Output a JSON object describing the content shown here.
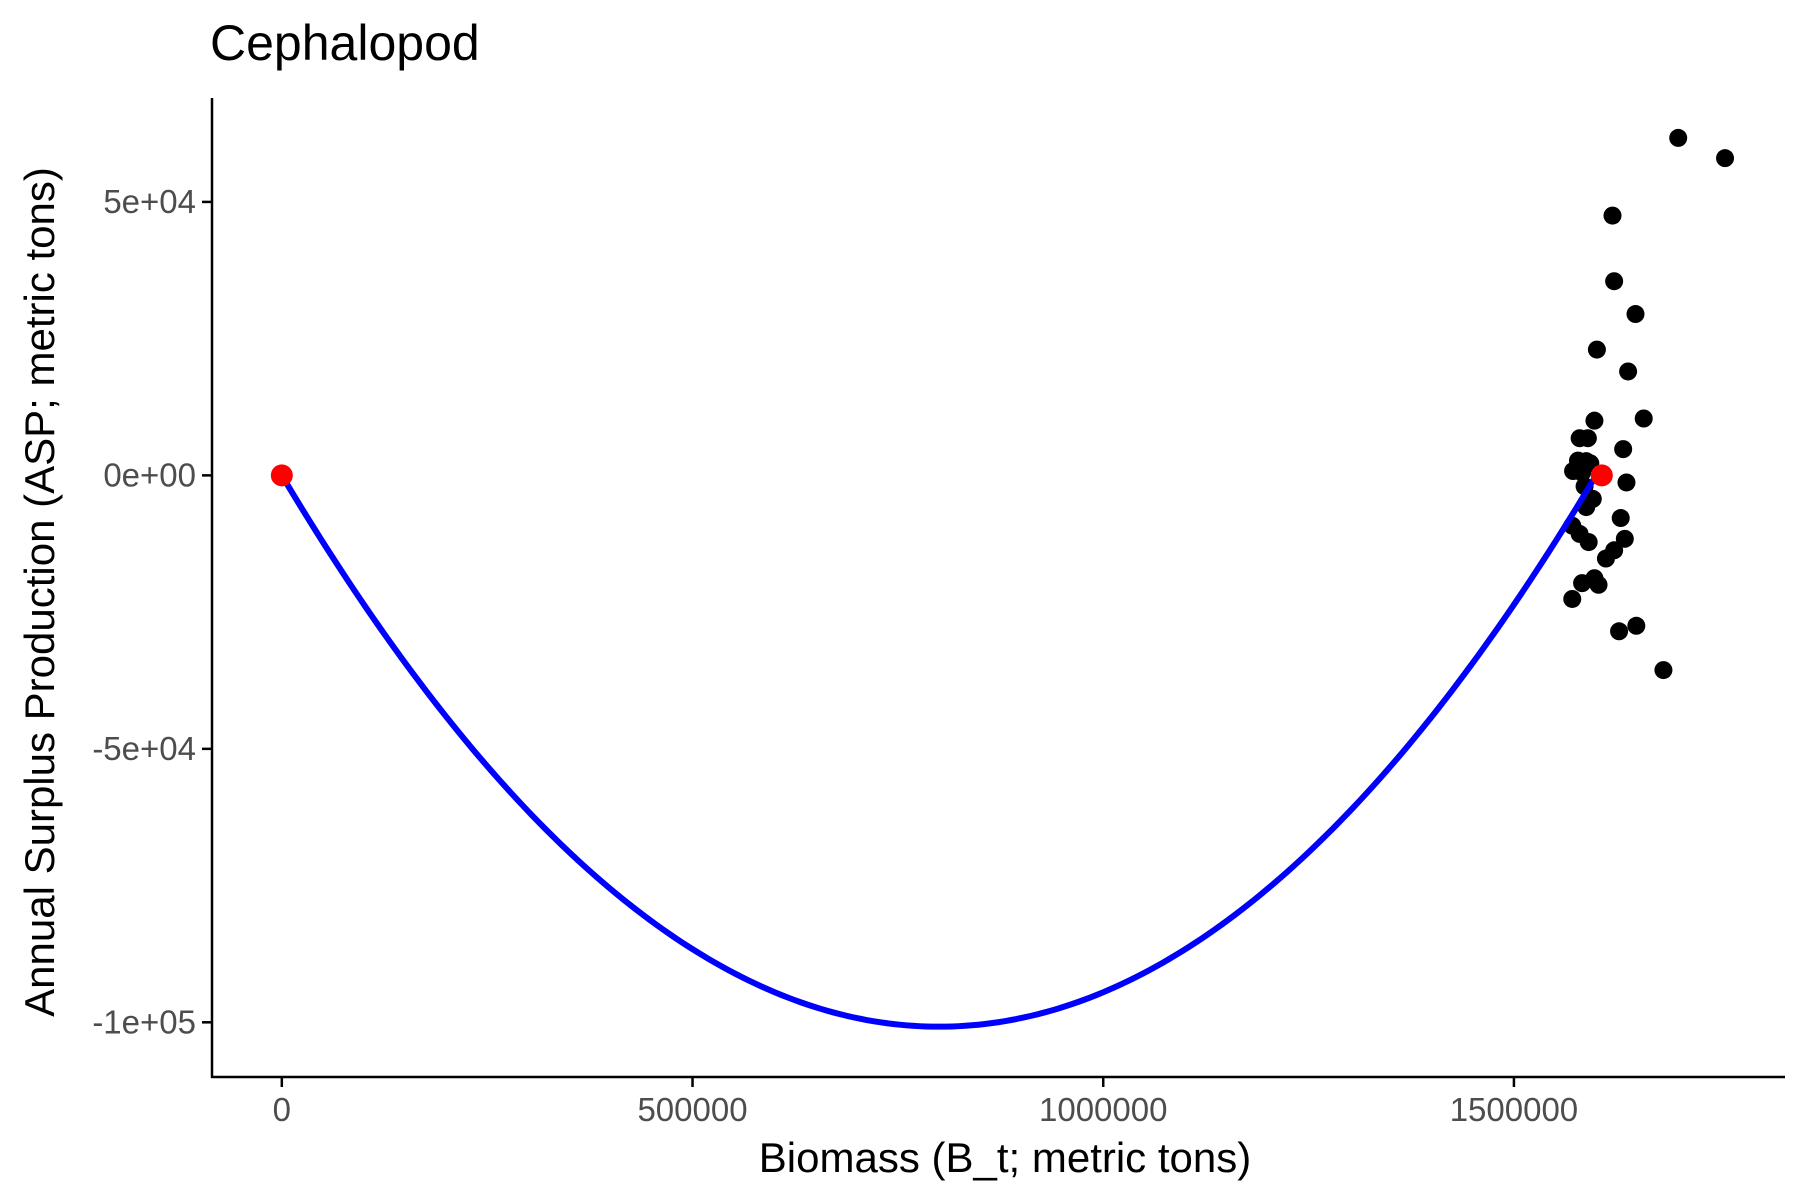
{
  "chart_data": {
    "type": "scatter",
    "title": "Cephalopod",
    "xlabel": "Biomass (B_t; metric tons)",
    "ylabel": "Annual Surplus Production (ASP; metric tons)",
    "xlim": [
      -85000,
      1830000
    ],
    "ylim": [
      -110000,
      69000
    ],
    "x_ticks": [
      0,
      500000,
      1000000,
      1500000
    ],
    "x_tick_labels": [
      "0",
      "500000",
      "1000000",
      "1500000"
    ],
    "y_ticks": [
      -100000,
      -50000,
      0,
      50000
    ],
    "y_tick_labels": [
      "-1e+05",
      "-5e+04",
      "0e+00",
      "5e+04"
    ],
    "grid": false,
    "legend": "none",
    "colors": {
      "points": "#000000",
      "curve": "#0000ff",
      "reference_points": "#ff0000"
    },
    "series": [
      {
        "kind": "points",
        "color": "#000000",
        "points": [
          [
            1700000,
            61700
          ],
          [
            1757000,
            58000
          ],
          [
            1620000,
            47500
          ],
          [
            1622000,
            35500
          ],
          [
            1648000,
            29500
          ],
          [
            1601000,
            23000
          ],
          [
            1639000,
            19000
          ],
          [
            1658000,
            10400
          ],
          [
            1598000,
            10000
          ],
          [
            1580000,
            6800
          ],
          [
            1590000,
            6800
          ],
          [
            1633000,
            4800
          ],
          [
            1578000,
            2700
          ],
          [
            1588000,
            2600
          ],
          [
            1593000,
            2200
          ],
          [
            1572000,
            800
          ],
          [
            1583000,
            500
          ],
          [
            1637000,
            -1300
          ],
          [
            1586000,
            -2000
          ],
          [
            1596000,
            -4300
          ],
          [
            1588000,
            -5800
          ],
          [
            1630000,
            -7800
          ],
          [
            1571000,
            -9200
          ],
          [
            1580000,
            -10700
          ],
          [
            1635000,
            -11600
          ],
          [
            1591000,
            -12200
          ],
          [
            1622000,
            -13700
          ],
          [
            1612000,
            -15200
          ],
          [
            1598000,
            -18800
          ],
          [
            1583000,
            -19700
          ],
          [
            1603000,
            -20000
          ],
          [
            1571000,
            -22600
          ],
          [
            1628000,
            -28500
          ],
          [
            1649000,
            -27500
          ],
          [
            1682000,
            -35600
          ]
        ]
      },
      {
        "kind": "curve",
        "color": "#0000ff",
        "fit": {
          "a": 0.0,
          "b": -0.252,
          "c": 1.575e-07,
          "x_min": 0,
          "x_max": 1600000
        }
      },
      {
        "kind": "reference_points",
        "color": "#ff0000",
        "points": [
          [
            0,
            0
          ],
          [
            1607000,
            0
          ]
        ]
      }
    ]
  }
}
